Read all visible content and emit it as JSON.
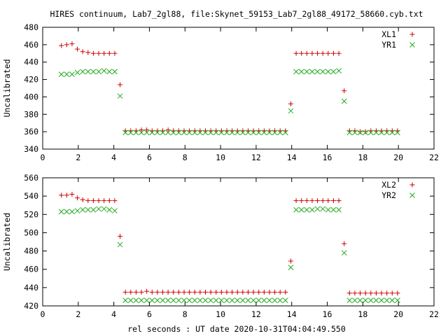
{
  "title": "HIRES continuum, Lab7_2gl88, file:Skynet_59153_Lab7_2gl88_49172_58660.cyb.txt",
  "xlabel": "rel seconds : UT date 2020-10-31T04:04:49.550",
  "colors": {
    "X": "#cc0000",
    "Y": "#22aa22"
  },
  "chart_data": [
    {
      "type": "scatter",
      "ylabel": "Uncalibrated",
      "xlim": [
        0,
        22
      ],
      "ylim": [
        340,
        480
      ],
      "xticks": [
        0,
        2,
        4,
        6,
        8,
        10,
        12,
        14,
        16,
        18,
        20,
        22
      ],
      "yticks": [
        340,
        360,
        380,
        400,
        420,
        440,
        460,
        480
      ],
      "grid": false,
      "legend": "top-right",
      "series": [
        {
          "name": "XL1",
          "marker": "plus",
          "x": [
            1.05,
            1.35,
            1.65,
            1.95,
            2.25,
            2.55,
            2.85,
            3.15,
            3.45,
            3.75,
            4.05,
            4.35,
            4.65,
            4.95,
            5.25,
            5.55,
            5.85,
            6.15,
            6.45,
            6.75,
            7.05,
            7.35,
            7.65,
            7.95,
            8.25,
            8.55,
            8.85,
            9.15,
            9.45,
            9.75,
            10.05,
            10.35,
            10.65,
            10.95,
            11.25,
            11.55,
            11.85,
            12.15,
            12.45,
            12.75,
            13.05,
            13.35,
            13.65,
            13.95,
            14.25,
            14.55,
            14.85,
            15.15,
            15.45,
            15.75,
            16.05,
            16.35,
            16.65,
            16.95,
            17.25,
            17.55,
            17.85,
            18.15,
            18.45,
            18.75,
            19.05,
            19.35,
            19.65,
            19.95
          ],
          "y": [
            459,
            460,
            461,
            455,
            452,
            451,
            450,
            450,
            450,
            450,
            450,
            414,
            361,
            361,
            361,
            362,
            362,
            361,
            361,
            361,
            362,
            361,
            361,
            361,
            361,
            361,
            361,
            361,
            361,
            361,
            361,
            361,
            361,
            361,
            361,
            361,
            361,
            361,
            361,
            361,
            361,
            361,
            361,
            392,
            450,
            450,
            450,
            450,
            450,
            450,
            450,
            450,
            450,
            407,
            361,
            361,
            360,
            360,
            361,
            361,
            361,
            361,
            361,
            361
          ]
        },
        {
          "name": "YR1",
          "marker": "cross",
          "x": [
            1.05,
            1.35,
            1.65,
            1.95,
            2.25,
            2.55,
            2.85,
            3.15,
            3.45,
            3.75,
            4.05,
            4.35,
            4.65,
            4.95,
            5.25,
            5.55,
            5.85,
            6.15,
            6.45,
            6.75,
            7.05,
            7.35,
            7.65,
            7.95,
            8.25,
            8.55,
            8.85,
            9.15,
            9.45,
            9.75,
            10.05,
            10.35,
            10.65,
            10.95,
            11.25,
            11.55,
            11.85,
            12.15,
            12.45,
            12.75,
            13.05,
            13.35,
            13.65,
            13.95,
            14.25,
            14.55,
            14.85,
            15.15,
            15.45,
            15.75,
            16.05,
            16.35,
            16.65,
            16.95,
            17.25,
            17.55,
            17.85,
            18.15,
            18.45,
            18.75,
            19.05,
            19.35,
            19.65,
            19.95
          ],
          "y": [
            426,
            426,
            426,
            428,
            429,
            429,
            429,
            429,
            430,
            429,
            429,
            401,
            359,
            359,
            359,
            359,
            359,
            359,
            359,
            359,
            359,
            359,
            359,
            359,
            359,
            359,
            359,
            359,
            359,
            359,
            359,
            359,
            359,
            359,
            359,
            359,
            359,
            359,
            359,
            359,
            359,
            359,
            359,
            384,
            429,
            429,
            429,
            429,
            429,
            429,
            429,
            429,
            430,
            395,
            359,
            359,
            359,
            359,
            359,
            359,
            359,
            359,
            359,
            359
          ]
        }
      ]
    },
    {
      "type": "scatter",
      "ylabel": "Uncalibrated",
      "xlim": [
        0,
        22
      ],
      "ylim": [
        420,
        560
      ],
      "xticks": [
        0,
        2,
        4,
        6,
        8,
        10,
        12,
        14,
        16,
        18,
        20,
        22
      ],
      "yticks": [
        420,
        440,
        460,
        480,
        500,
        520,
        540,
        560
      ],
      "grid": false,
      "legend": "top-right",
      "series": [
        {
          "name": "XL2",
          "marker": "plus",
          "x": [
            1.05,
            1.35,
            1.65,
            1.95,
            2.25,
            2.55,
            2.85,
            3.15,
            3.45,
            3.75,
            4.05,
            4.35,
            4.65,
            4.95,
            5.25,
            5.55,
            5.85,
            6.15,
            6.45,
            6.75,
            7.05,
            7.35,
            7.65,
            7.95,
            8.25,
            8.55,
            8.85,
            9.15,
            9.45,
            9.75,
            10.05,
            10.35,
            10.65,
            10.95,
            11.25,
            11.55,
            11.85,
            12.15,
            12.45,
            12.75,
            13.05,
            13.35,
            13.65,
            13.95,
            14.25,
            14.55,
            14.85,
            15.15,
            15.45,
            15.75,
            16.05,
            16.35,
            16.65,
            16.95,
            17.25,
            17.55,
            17.85,
            18.15,
            18.45,
            18.75,
            19.05,
            19.35,
            19.65,
            19.95
          ],
          "y": [
            541,
            541,
            542,
            538,
            536,
            535,
            535,
            535,
            535,
            535,
            535,
            496,
            435,
            435,
            435,
            435,
            436,
            435,
            435,
            435,
            435,
            435,
            435,
            435,
            435,
            435,
            435,
            435,
            435,
            435,
            435,
            435,
            435,
            435,
            435,
            435,
            435,
            435,
            435,
            435,
            435,
            435,
            435,
            469,
            535,
            535,
            535,
            535,
            535,
            535,
            535,
            535,
            535,
            488,
            434,
            434,
            434,
            434,
            434,
            434,
            434,
            434,
            434,
            434
          ]
        },
        {
          "name": "YR2",
          "marker": "cross",
          "x": [
            1.05,
            1.35,
            1.65,
            1.95,
            2.25,
            2.55,
            2.85,
            3.15,
            3.45,
            3.75,
            4.05,
            4.35,
            4.65,
            4.95,
            5.25,
            5.55,
            5.85,
            6.15,
            6.45,
            6.75,
            7.05,
            7.35,
            7.65,
            7.95,
            8.25,
            8.55,
            8.85,
            9.15,
            9.45,
            9.75,
            10.05,
            10.35,
            10.65,
            10.95,
            11.25,
            11.55,
            11.85,
            12.15,
            12.45,
            12.75,
            13.05,
            13.35,
            13.65,
            13.95,
            14.25,
            14.55,
            14.85,
            15.15,
            15.45,
            15.75,
            16.05,
            16.35,
            16.65,
            16.95,
            17.25,
            17.55,
            17.85,
            18.15,
            18.45,
            18.75,
            19.05,
            19.35,
            19.65,
            19.95
          ],
          "y": [
            523,
            523,
            523,
            524,
            525,
            525,
            525,
            526,
            526,
            525,
            524,
            487,
            426,
            426,
            426,
            426,
            426,
            426,
            426,
            426,
            426,
            426,
            426,
            426,
            426,
            426,
            426,
            426,
            426,
            426,
            426,
            426,
            426,
            426,
            426,
            426,
            426,
            426,
            426,
            426,
            426,
            426,
            426,
            462,
            525,
            525,
            525,
            525,
            526,
            526,
            525,
            525,
            525,
            478,
            426,
            426,
            426,
            426,
            426,
            426,
            426,
            426,
            426,
            426
          ]
        }
      ]
    }
  ]
}
